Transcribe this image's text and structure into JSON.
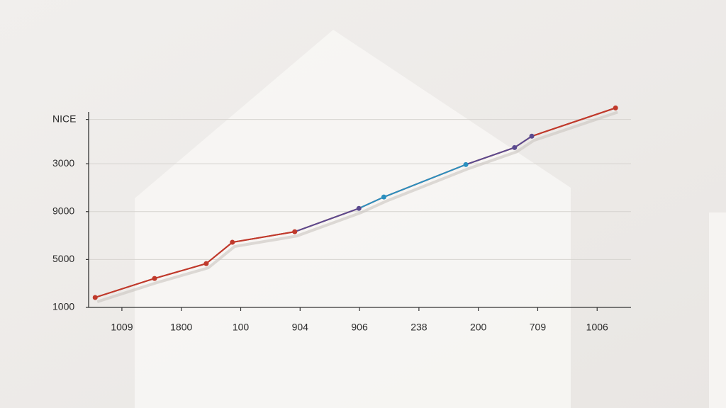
{
  "chart_data": {
    "type": "line",
    "xlim": [
      -0.56,
      8.57
    ],
    "xticks": [
      {
        "value": 0,
        "label": "1009"
      },
      {
        "value": 1,
        "label": "1800"
      },
      {
        "value": 2,
        "label": "100"
      },
      {
        "value": 3,
        "label": "904"
      },
      {
        "value": 4,
        "label": "906"
      },
      {
        "value": 5,
        "label": "238"
      },
      {
        "value": 6,
        "label": "200"
      },
      {
        "value": 7,
        "label": "709"
      },
      {
        "value": 8,
        "label": "1006"
      }
    ],
    "ylim": [
      1000,
      17800
    ],
    "yticks": [
      1000,
      5000,
      9000,
      {
        "value": 13000,
        "label": "3000"
      },
      {
        "value": 16700,
        "label": "NICE"
      }
    ],
    "grid": true,
    "series": [
      {
        "color": "#c0392b",
        "segment_colors": [
          "#c0392b",
          "#c0392b",
          "#c0392b",
          "#c0392b",
          "#5b4a8f",
          "#2a8fbf",
          "#2a8fbf",
          "#5b4a8f",
          "#5b4a8f",
          "#c0392b"
        ],
        "x": [
          -0.45,
          0.55,
          1.42,
          1.86,
          2.91,
          3.99,
          4.41,
          5.79,
          6.61,
          6.9,
          8.31
        ],
        "values": [
          1830,
          3420,
          4660,
          6440,
          7320,
          9270,
          10220,
          12930,
          14350,
          15300,
          17660
        ]
      }
    ]
  }
}
